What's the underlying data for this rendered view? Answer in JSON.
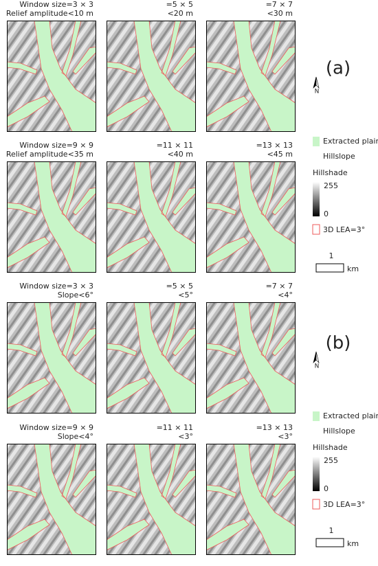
{
  "sections": [
    {
      "label": "(a)",
      "north": "N",
      "panels": [
        {
          "line1": "Window size=3 × 3",
          "line2": "Relief amplitude<10 m"
        },
        {
          "line1": "=5 × 5",
          "line2": "<20 m"
        },
        {
          "line1": "=7 × 7",
          "line2": "<30 m"
        },
        {
          "line1": "Window size=9 × 9",
          "line2": "Relief amplitude<35 m"
        },
        {
          "line1": "=11 × 11",
          "line2": "<40 m"
        },
        {
          "line1": "=13 × 13",
          "line2": "<45 m"
        }
      ],
      "legend": {
        "plain": "Extracted plain",
        "hillslope": "Hillslope",
        "hillshade": "Hillshade",
        "high": 255,
        "low": 0,
        "boundary": "3D LEA=3°"
      },
      "scale": {
        "value": 1,
        "unit": "km"
      }
    },
    {
      "label": "(b)",
      "north": "N",
      "panels": [
        {
          "line1": "Window size=3 × 3",
          "line2": "Slope<6°"
        },
        {
          "line1": "=5 × 5",
          "line2": "<5°"
        },
        {
          "line1": "=7 × 7",
          "line2": "<4°"
        },
        {
          "line1": "Window size=9 × 9",
          "line2": "Slope<4°"
        },
        {
          "line1": "=11 × 11",
          "line2": "<3°"
        },
        {
          "line1": "=13 × 13",
          "line2": "<3°"
        }
      ],
      "legend": {
        "plain": "Extracted plain",
        "hillslope": "Hillslope",
        "hillshade": "Hillshade",
        "high": 255,
        "low": 0,
        "boundary": "3D LEA=3°"
      },
      "scale": {
        "value": 1,
        "unit": "km"
      }
    }
  ]
}
